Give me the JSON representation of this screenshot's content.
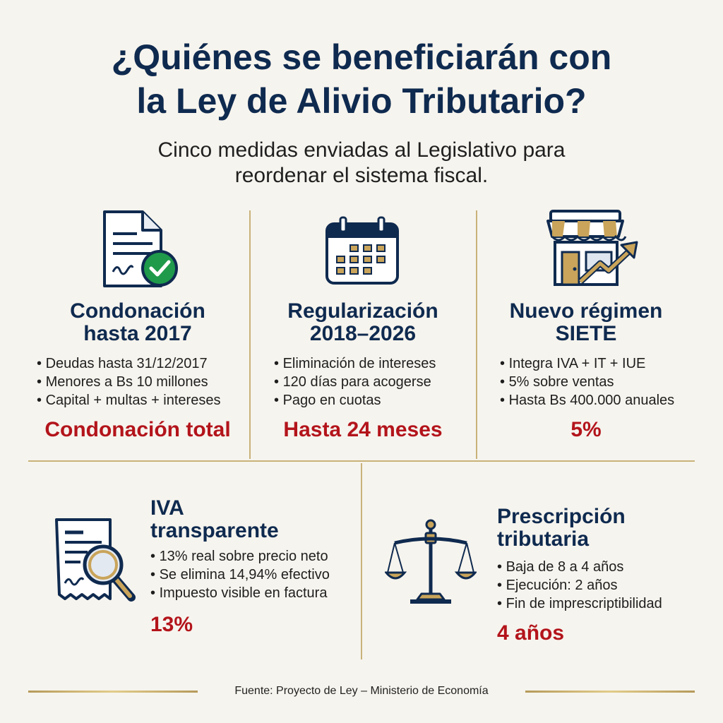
{
  "header": {
    "title_line1": "¿Quiénes se beneficiarán con",
    "title_line2": "la Ley de Alivio Tributario?",
    "subtitle_line1": "Cinco medidas enviadas al Legislativo para",
    "subtitle_line2": "reordenar el sistema fiscal."
  },
  "cards": [
    {
      "title_line1": "Condonación",
      "title_line2": "hasta 2017",
      "bullets": [
        "Deudas hasta 31/12/2017",
        "Menores a Bs 10 millones",
        "Capital + multas + intereses"
      ],
      "highlight": "Condonación total",
      "icon": "document-check-icon"
    },
    {
      "title_line1": "Regularización",
      "title_line2": "2018–2026",
      "bullets": [
        "Eliminación de intereses",
        "120 días para acogerse",
        "Pago en cuotas"
      ],
      "highlight": "Hasta 24 meses",
      "icon": "calendar-icon"
    },
    {
      "title_line1": "Nuevo régimen",
      "title_line2": "SIETE",
      "bullets": [
        "Integra IVA + IT + IUE",
        "5% sobre ventas",
        "Hasta Bs 400.000 anuales"
      ],
      "highlight": "5%",
      "icon": "storefront-growth-icon"
    },
    {
      "title_line1": "IVA",
      "title_line2": "transparente",
      "bullets": [
        "13% real sobre precio neto",
        "Se elimina 14,94% efectivo",
        "Impuesto visible en factura"
      ],
      "highlight": "13%",
      "icon": "receipt-magnifier-icon"
    },
    {
      "title_line1": "Prescripción",
      "title_line2": "tributaria",
      "bullets": [
        "Baja de 8 a 4 años",
        "Ejecución: 2 años",
        "Fin de imprescriptibilidad"
      ],
      "highlight": "4 años",
      "icon": "scales-icon"
    }
  ],
  "footer": {
    "source": "Fuente: Proyecto de Ley – Ministerio de Economía"
  },
  "colors": {
    "navy": "#0f2a4f",
    "red": "#b3141b",
    "gold": "#c9b27a",
    "green": "#1f9a4a",
    "background": "#f6f4ee"
  }
}
